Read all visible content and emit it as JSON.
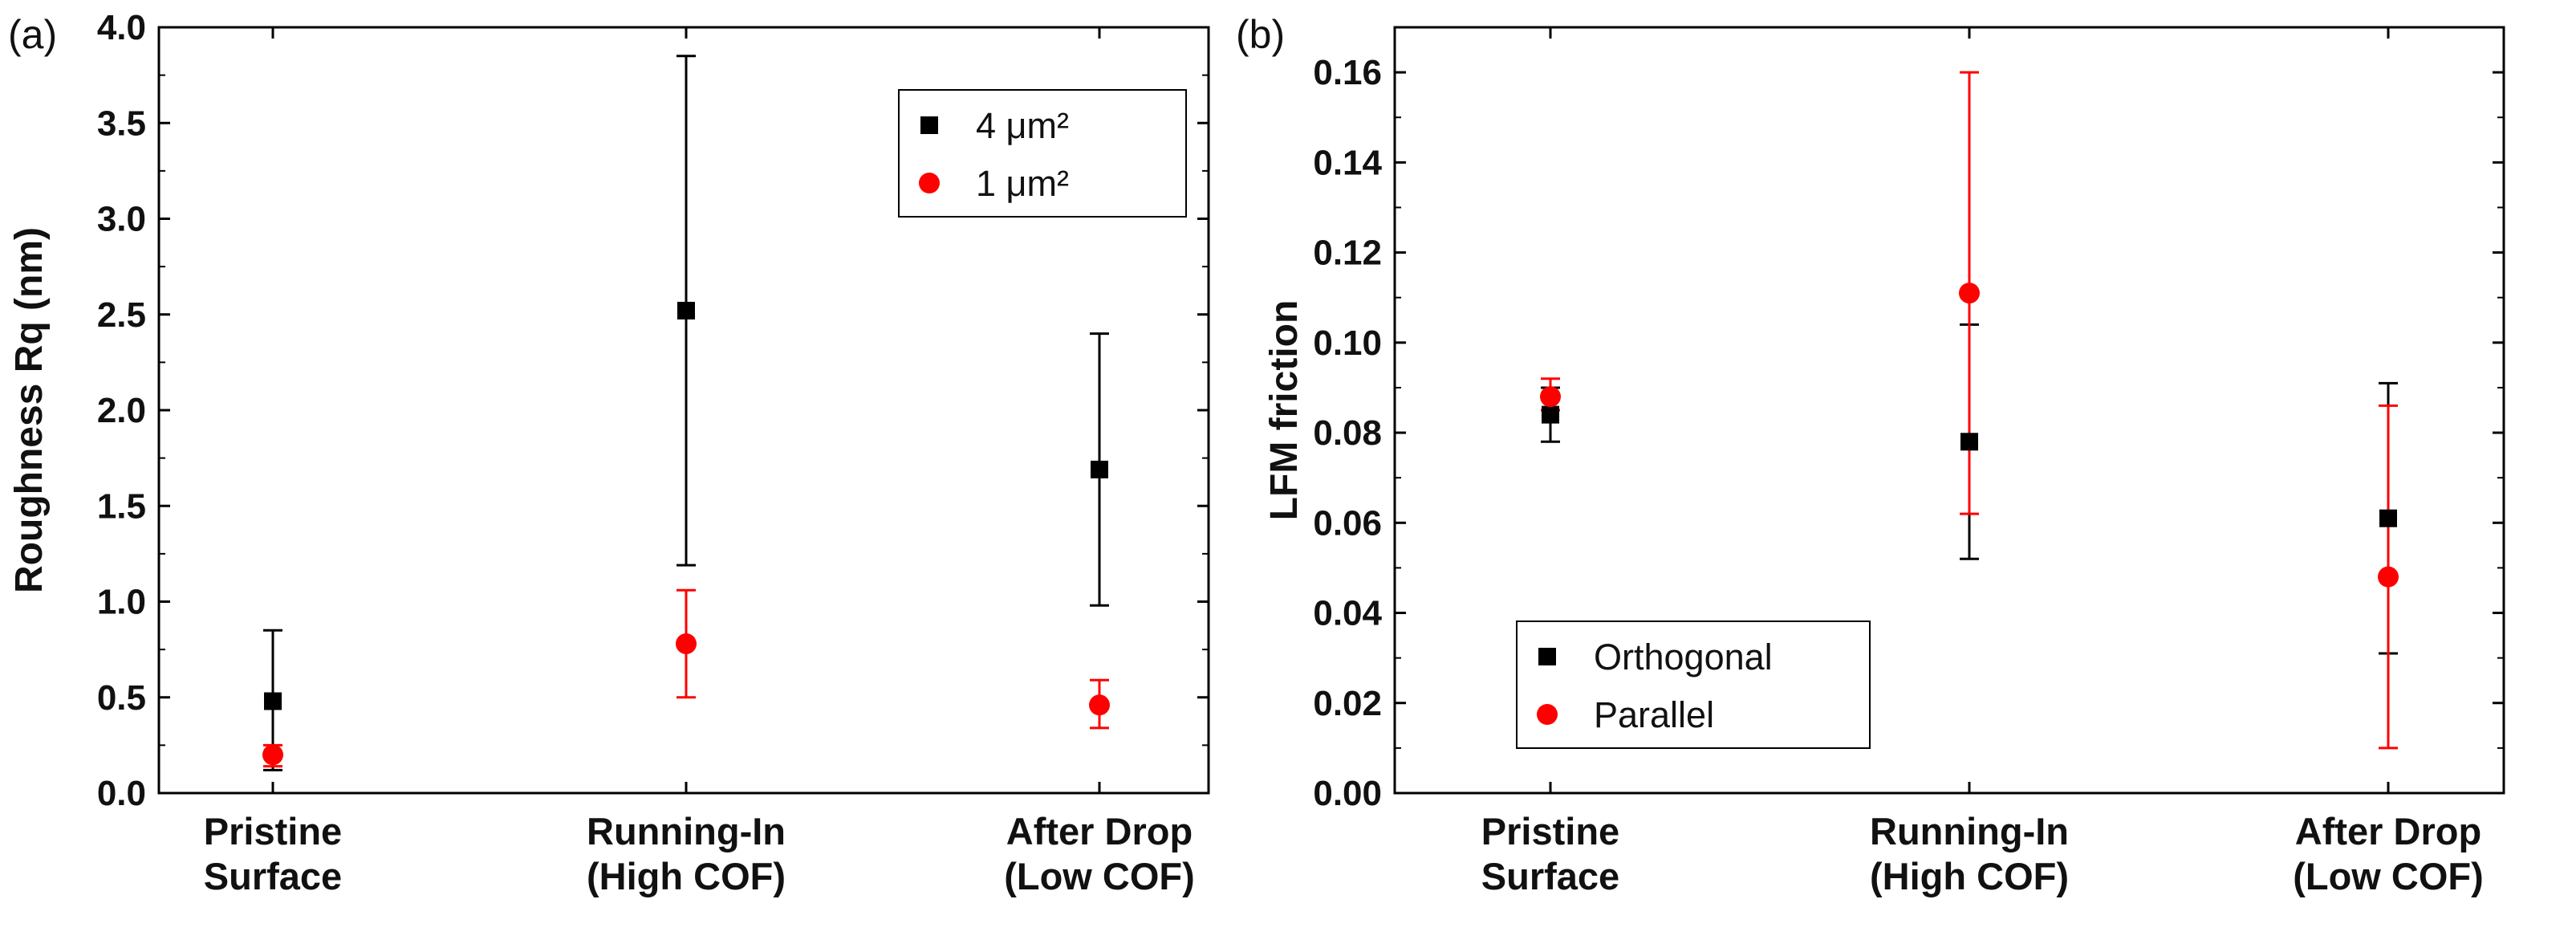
{
  "colors": {
    "series_black": "#000000",
    "series_red": "#ff0000",
    "axis": "#000000"
  },
  "chart_data": [
    {
      "type": "scatter",
      "panel_label": "(a)",
      "title": "",
      "xlabel": "",
      "ylabel": "Roughness Rq (nm)",
      "ylim": [
        0.0,
        4.0
      ],
      "yticks": [
        "0.0",
        "0.5",
        "1.0",
        "1.5",
        "2.0",
        "2.5",
        "3.0",
        "3.5",
        "4.0"
      ],
      "categories": [
        [
          "Pristine",
          "Surface"
        ],
        [
          "Running-In",
          "(High COF)"
        ],
        [
          "After Drop",
          "(Low COF)"
        ]
      ],
      "legend_position": "top-right",
      "series": [
        {
          "name": "4 μm²",
          "marker": "square",
          "color": "#000000",
          "values": [
            0.48,
            2.52,
            1.69
          ],
          "err_low": [
            0.12,
            1.19,
            0.98
          ],
          "err_high": [
            0.85,
            3.85,
            2.4
          ]
        },
        {
          "name": "1 μm²",
          "marker": "circle",
          "color": "#ff0000",
          "values": [
            0.2,
            0.78,
            0.46
          ],
          "err_low": [
            0.14,
            0.5,
            0.34
          ],
          "err_high": [
            0.25,
            1.06,
            0.59
          ]
        }
      ]
    },
    {
      "type": "scatter",
      "panel_label": "(b)",
      "title": "",
      "xlabel": "",
      "ylabel": "LFM friction",
      "ylim": [
        0.0,
        0.17
      ],
      "yticks": [
        "0.00",
        "0.02",
        "0.04",
        "0.06",
        "0.08",
        "0.10",
        "0.12",
        "0.14",
        "0.16"
      ],
      "categories": [
        [
          "Pristine",
          "Surface"
        ],
        [
          "Running-In",
          "(High COF)"
        ],
        [
          "After Drop",
          "(Low COF)"
        ]
      ],
      "legend_position": "bottom-left",
      "series": [
        {
          "name": "Orthogonal",
          "marker": "square",
          "color": "#000000",
          "values": [
            0.084,
            0.078,
            0.061
          ],
          "err_low": [
            0.078,
            0.052,
            0.031
          ],
          "err_high": [
            0.09,
            0.104,
            0.091
          ]
        },
        {
          "name": "Parallel",
          "marker": "circle",
          "color": "#ff0000",
          "values": [
            0.088,
            0.111,
            0.048
          ],
          "err_low": [
            0.085,
            0.062,
            0.01
          ],
          "err_high": [
            0.092,
            0.16,
            0.086
          ]
        }
      ]
    }
  ]
}
